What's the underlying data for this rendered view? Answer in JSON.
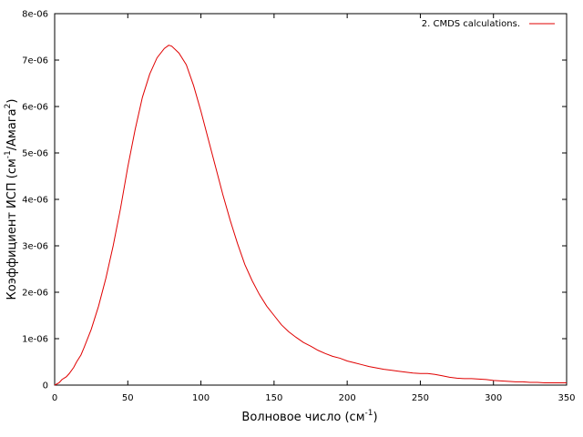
{
  "chart_data": {
    "type": "line",
    "xlabel": {
      "main": "Волновое число (см",
      "sup": "-1",
      "tail": ")"
    },
    "ylabel": {
      "p1": "Коэффициент ИСП (см",
      "sup1": "-1",
      "p2": "/Амага",
      "sup2": "2",
      "p3": ")"
    },
    "xlim": [
      0,
      350
    ],
    "ylim": [
      0,
      8e-06
    ],
    "xticks": [
      0,
      50,
      100,
      150,
      200,
      250,
      300,
      350
    ],
    "xtick_labels": [
      "0",
      "50",
      "100",
      "150",
      "200",
      "250",
      "300",
      "350"
    ],
    "yticks": [
      0,
      1e-06,
      2e-06,
      3e-06,
      4e-06,
      5e-06,
      6e-06,
      7e-06,
      8e-06
    ],
    "ytick_labels": [
      "0",
      "1e-06",
      "2e-06",
      "3e-06",
      "4e-06",
      "5e-06",
      "6e-06",
      "7e-06",
      "8e-06"
    ],
    "grid": false,
    "legend_position": "top-right",
    "series": [
      {
        "name": "2. CMDS calculations.",
        "color": "#e00000",
        "points": [
          [
            0,
            0.0
          ],
          [
            3,
            5e-08
          ],
          [
            5,
            1.2e-07
          ],
          [
            8,
            1.8e-07
          ],
          [
            10,
            2.5e-07
          ],
          [
            13,
            3.8e-07
          ],
          [
            15,
            5e-07
          ],
          [
            18,
            6.5e-07
          ],
          [
            20,
            8e-07
          ],
          [
            25,
            1.2e-06
          ],
          [
            30,
            1.7e-06
          ],
          [
            35,
            2.3e-06
          ],
          [
            40,
            3e-06
          ],
          [
            45,
            3.8e-06
          ],
          [
            50,
            4.7e-06
          ],
          [
            55,
            5.5e-06
          ],
          [
            60,
            6.2e-06
          ],
          [
            65,
            6.7e-06
          ],
          [
            70,
            7.05e-06
          ],
          [
            75,
            7.25e-06
          ],
          [
            78,
            7.32e-06
          ],
          [
            80,
            7.3e-06
          ],
          [
            85,
            7.15e-06
          ],
          [
            90,
            6.9e-06
          ],
          [
            95,
            6.45e-06
          ],
          [
            100,
            5.9e-06
          ],
          [
            105,
            5.3e-06
          ],
          [
            110,
            4.7e-06
          ],
          [
            115,
            4.1e-06
          ],
          [
            120,
            3.55e-06
          ],
          [
            125,
            3.05e-06
          ],
          [
            130,
            2.6e-06
          ],
          [
            135,
            2.25e-06
          ],
          [
            140,
            1.95e-06
          ],
          [
            145,
            1.7e-06
          ],
          [
            150,
            1.5e-06
          ],
          [
            155,
            1.3e-06
          ],
          [
            160,
            1.15e-06
          ],
          [
            165,
            1.03e-06
          ],
          [
            170,
            9.2e-07
          ],
          [
            175,
            8.4e-07
          ],
          [
            180,
            7.5e-07
          ],
          [
            185,
            6.8e-07
          ],
          [
            190,
            6.2e-07
          ],
          [
            195,
            5.8e-07
          ],
          [
            200,
            5.2e-07
          ],
          [
            205,
            4.8e-07
          ],
          [
            210,
            4.4e-07
          ],
          [
            215,
            4e-07
          ],
          [
            220,
            3.7e-07
          ],
          [
            225,
            3.4e-07
          ],
          [
            230,
            3.2e-07
          ],
          [
            235,
            3e-07
          ],
          [
            240,
            2.8e-07
          ],
          [
            245,
            2.6e-07
          ],
          [
            250,
            2.5e-07
          ],
          [
            255,
            2.5e-07
          ],
          [
            260,
            2.3e-07
          ],
          [
            265,
            2e-07
          ],
          [
            270,
            1.7e-07
          ],
          [
            275,
            1.5e-07
          ],
          [
            280,
            1.4e-07
          ],
          [
            285,
            1.4e-07
          ],
          [
            290,
            1.3e-07
          ],
          [
            295,
            1.2e-07
          ],
          [
            300,
            1e-07
          ],
          [
            305,
            9e-08
          ],
          [
            310,
            8e-08
          ],
          [
            315,
            7e-08
          ],
          [
            320,
            7e-08
          ],
          [
            325,
            6e-08
          ],
          [
            330,
            6e-08
          ],
          [
            335,
            5e-08
          ],
          [
            340,
            5e-08
          ],
          [
            345,
            5e-08
          ],
          [
            350,
            5e-08
          ]
        ]
      }
    ]
  }
}
